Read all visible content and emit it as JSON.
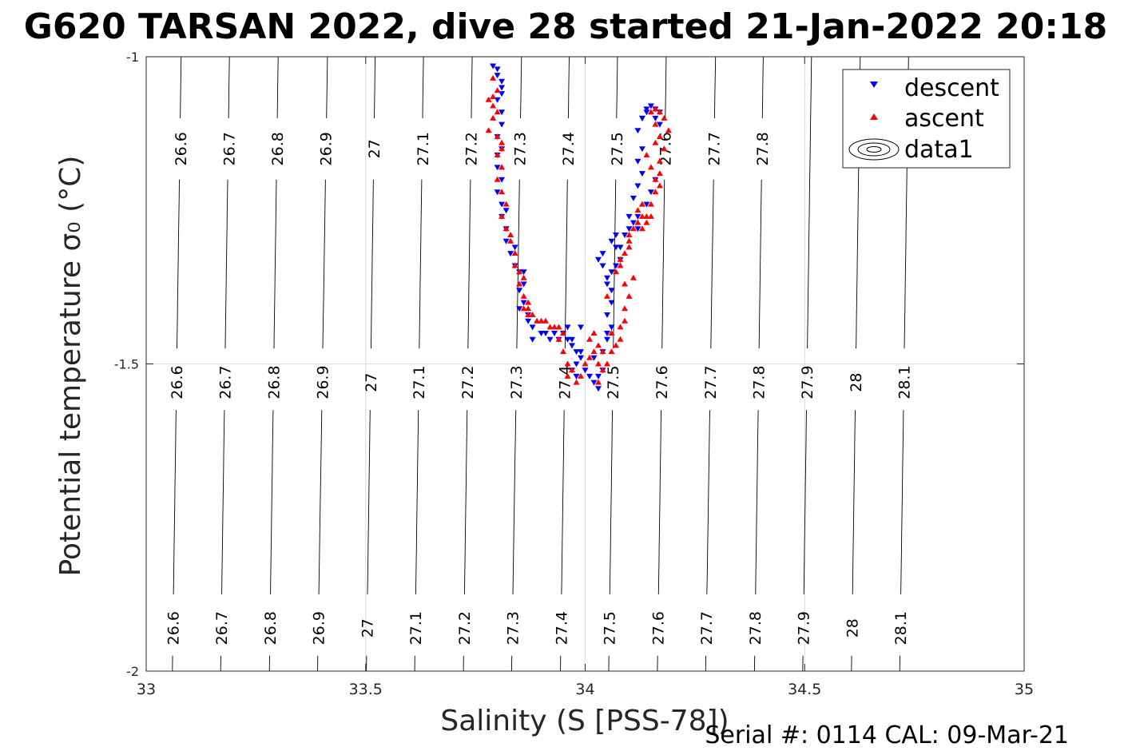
{
  "chart_data": {
    "type": "scatter",
    "title": "G620 TARSAN 2022, dive 28 started 21-Jan-2022 20:18",
    "xlabel": "Salinity (S [PSS-78])",
    "ylabel": "Potential temperature σ₀ (°C)",
    "footer": "Serial #: 0114  CAL: 09-Mar-21",
    "xlim": [
      33,
      35
    ],
    "ylim": [
      -2,
      -1
    ],
    "x_ticks": [
      33,
      33.5,
      34,
      34.5,
      35
    ],
    "x_tick_labels": [
      "33",
      "33.5",
      "34",
      "34.5",
      "35"
    ],
    "y_ticks": [
      -2,
      -1.5,
      -1
    ],
    "y_tick_labels": [
      "-2",
      "-1.5",
      "-1"
    ],
    "grid": true,
    "legend_position": "top-right",
    "legend": [
      {
        "label": "descent",
        "marker": "triangle-down",
        "color": "#0000ff"
      },
      {
        "label": "ascent",
        "marker": "triangle-up",
        "color": "#ff0000"
      },
      {
        "label": "data1",
        "marker": "contour",
        "color": "#000000"
      }
    ],
    "isopycnals": [
      {
        "label": "26.6",
        "label_s": [
          33.061,
          33.069,
          33.078
        ]
      },
      {
        "label": "26.7",
        "label_s": [
          33.171,
          33.179,
          33.188
        ]
      },
      {
        "label": "26.8",
        "label_s": [
          33.282,
          33.29,
          33.298
        ]
      },
      {
        "label": "26.9",
        "label_s": [
          33.392,
          33.401,
          33.409
        ]
      },
      {
        "label": "27",
        "label_s": [
          33.503,
          33.511,
          33.519
        ]
      },
      {
        "label": "27.1",
        "label_s": [
          33.613,
          33.621,
          33.63
        ]
      },
      {
        "label": "27.2",
        "label_s": [
          33.724,
          33.732,
          33.74
        ]
      },
      {
        "label": "27.3",
        "label_s": [
          33.834,
          33.843,
          33.851
        ]
      },
      {
        "label": "27.4",
        "label_s": [
          33.945,
          33.953,
          33.961
        ]
      },
      {
        "label": "27.5",
        "label_s": [
          34.055,
          34.063,
          34.072
        ]
      },
      {
        "label": "27.6",
        "label_s": [
          34.166,
          34.174,
          34.182
        ]
      },
      {
        "label": "27.7",
        "label_s": [
          34.276,
          34.285,
          34.293
        ]
      },
      {
        "label": "27.8",
        "label_s": [
          34.387,
          34.395,
          34.403
        ]
      },
      {
        "label": "27.9",
        "label_s": [
          34.497,
          34.505,
          null
        ]
      },
      {
        "label": "28",
        "label_s": [
          34.608,
          34.616,
          null
        ]
      },
      {
        "label": "28.1",
        "label_s": [
          34.718,
          34.726,
          null
        ]
      }
    ],
    "isopycnal_label_temps": [
      -1.93,
      -1.53,
      -1.15
    ],
    "series": [
      {
        "name": "descent",
        "color": "#0000ff",
        "marker": "triangle-down",
        "points": [
          [
            33.79,
            -1.015
          ],
          [
            33.8,
            -1.02
          ],
          [
            33.8,
            -1.03
          ],
          [
            33.81,
            -1.04
          ],
          [
            33.81,
            -1.05
          ],
          [
            33.8,
            -1.07
          ],
          [
            33.81,
            -1.09
          ],
          [
            33.81,
            -1.11
          ],
          [
            33.8,
            -1.13
          ],
          [
            33.81,
            -1.15
          ],
          [
            33.8,
            -1.18
          ],
          [
            33.81,
            -1.2
          ],
          [
            33.8,
            -1.22
          ],
          [
            33.81,
            -1.24
          ],
          [
            33.81,
            -1.26
          ],
          [
            33.82,
            -1.28
          ],
          [
            33.82,
            -1.3
          ],
          [
            33.83,
            -1.32
          ],
          [
            33.84,
            -1.34
          ],
          [
            33.85,
            -1.35
          ],
          [
            33.86,
            -1.35
          ],
          [
            33.86,
            -1.37
          ],
          [
            33.85,
            -1.38
          ],
          [
            33.86,
            -1.4
          ],
          [
            33.85,
            -1.41
          ],
          [
            33.87,
            -1.42
          ],
          [
            33.87,
            -1.43
          ],
          [
            33.88,
            -1.44
          ],
          [
            33.9,
            -1.45
          ],
          [
            33.91,
            -1.45
          ],
          [
            33.93,
            -1.45
          ],
          [
            33.95,
            -1.45
          ],
          [
            33.96,
            -1.44
          ],
          [
            33.96,
            -1.46
          ],
          [
            33.97,
            -1.47
          ],
          [
            33.98,
            -1.48
          ],
          [
            33.99,
            -1.49
          ],
          [
            33.98,
            -1.5
          ],
          [
            33.97,
            -1.51
          ],
          [
            33.98,
            -1.52
          ],
          [
            33.99,
            -1.44
          ],
          [
            33.99,
            -1.48
          ],
          [
            34.0,
            -1.51
          ],
          [
            34.01,
            -1.52
          ],
          [
            34.02,
            -1.53
          ],
          [
            34.03,
            -1.54
          ],
          [
            34.03,
            -1.52
          ],
          [
            34.04,
            -1.51
          ],
          [
            34.04,
            -1.48
          ],
          [
            34.05,
            -1.46
          ],
          [
            34.05,
            -1.45
          ],
          [
            34.06,
            -1.44
          ],
          [
            34.05,
            -1.42
          ],
          [
            34.06,
            -1.4
          ],
          [
            34.06,
            -1.38
          ],
          [
            34.05,
            -1.37
          ],
          [
            34.06,
            -1.35
          ],
          [
            34.07,
            -1.34
          ],
          [
            34.08,
            -1.33
          ],
          [
            34.08,
            -1.31
          ],
          [
            34.09,
            -1.29
          ],
          [
            34.1,
            -1.28
          ],
          [
            34.11,
            -1.27
          ],
          [
            34.12,
            -1.28
          ],
          [
            34.12,
            -1.26
          ],
          [
            34.11,
            -1.23
          ],
          [
            34.12,
            -1.21
          ],
          [
            34.13,
            -1.19
          ],
          [
            34.12,
            -1.17
          ],
          [
            34.13,
            -1.15
          ],
          [
            34.12,
            -1.12
          ],
          [
            34.13,
            -1.1
          ],
          [
            34.14,
            -1.085
          ],
          [
            34.15,
            -1.08
          ],
          [
            34.16,
            -1.085
          ],
          [
            34.17,
            -1.09
          ],
          [
            34.16,
            -1.1
          ],
          [
            34.17,
            -1.11
          ],
          [
            34.03,
            -1.33
          ],
          [
            34.04,
            -1.32
          ],
          [
            34.04,
            -1.34
          ],
          [
            34.05,
            -1.36
          ],
          [
            34.06,
            -1.3
          ],
          [
            34.07,
            -1.29
          ],
          [
            34.13,
            -1.1
          ],
          [
            34.14,
            -1.09
          ],
          [
            33.8,
            -1.16
          ],
          [
            33.82,
            -1.25
          ],
          [
            33.84,
            -1.31
          ],
          [
            33.88,
            -1.46
          ],
          [
            33.92,
            -1.46
          ],
          [
            33.94,
            -1.46
          ],
          [
            33.97,
            -1.46
          ],
          [
            34.02,
            -1.49
          ],
          [
            34.07,
            -1.31
          ],
          [
            34.1,
            -1.26
          ],
          [
            34.14,
            -1.24
          ],
          [
            34.15,
            -1.22
          ],
          [
            34.16,
            -1.2
          ],
          [
            33.81,
            -1.06
          ]
        ]
      },
      {
        "name": "ascent",
        "color": "#ff0000",
        "marker": "triangle-up",
        "points": [
          [
            33.78,
            -1.07
          ],
          [
            33.79,
            -1.08
          ],
          [
            33.8,
            -1.09
          ],
          [
            33.79,
            -1.1
          ],
          [
            33.78,
            -1.12
          ],
          [
            33.8,
            -1.13
          ],
          [
            33.81,
            -1.15
          ],
          [
            33.8,
            -1.16
          ],
          [
            33.81,
            -1.18
          ],
          [
            33.8,
            -1.2
          ],
          [
            33.81,
            -1.22
          ],
          [
            33.82,
            -1.24
          ],
          [
            33.81,
            -1.26
          ],
          [
            33.82,
            -1.28
          ],
          [
            33.83,
            -1.3
          ],
          [
            33.84,
            -1.32
          ],
          [
            33.84,
            -1.34
          ],
          [
            33.85,
            -1.35
          ],
          [
            33.86,
            -1.36
          ],
          [
            33.85,
            -1.37
          ],
          [
            33.86,
            -1.39
          ],
          [
            33.87,
            -1.4
          ],
          [
            33.86,
            -1.41
          ],
          [
            33.87,
            -1.42
          ],
          [
            33.88,
            -1.42
          ],
          [
            33.89,
            -1.43
          ],
          [
            33.9,
            -1.43
          ],
          [
            33.91,
            -1.43
          ],
          [
            33.92,
            -1.44
          ],
          [
            33.94,
            -1.44
          ],
          [
            33.95,
            -1.45
          ],
          [
            33.94,
            -1.46
          ],
          [
            33.95,
            -1.48
          ],
          [
            33.96,
            -1.5
          ],
          [
            33.97,
            -1.51
          ],
          [
            33.96,
            -1.52
          ],
          [
            33.98,
            -1.53
          ],
          [
            33.99,
            -1.52
          ],
          [
            34.0,
            -1.5
          ],
          [
            34.01,
            -1.49
          ],
          [
            34.02,
            -1.48
          ],
          [
            34.01,
            -1.46
          ],
          [
            34.02,
            -1.45
          ],
          [
            34.03,
            -1.47
          ],
          [
            34.04,
            -1.48
          ],
          [
            34.04,
            -1.51
          ],
          [
            34.03,
            -1.53
          ],
          [
            34.05,
            -1.5
          ],
          [
            34.06,
            -1.48
          ],
          [
            34.07,
            -1.47
          ],
          [
            34.08,
            -1.46
          ],
          [
            34.08,
            -1.44
          ],
          [
            34.09,
            -1.43
          ],
          [
            34.09,
            -1.41
          ],
          [
            34.1,
            -1.39
          ],
          [
            34.09,
            -1.37
          ],
          [
            34.08,
            -1.34
          ],
          [
            34.09,
            -1.32
          ],
          [
            34.1,
            -1.31
          ],
          [
            34.1,
            -1.3
          ],
          [
            34.11,
            -1.28
          ],
          [
            34.12,
            -1.27
          ],
          [
            34.12,
            -1.25
          ],
          [
            34.13,
            -1.24
          ],
          [
            34.13,
            -1.26
          ],
          [
            34.14,
            -1.27
          ],
          [
            34.15,
            -1.26
          ],
          [
            34.15,
            -1.24
          ],
          [
            34.16,
            -1.22
          ],
          [
            34.17,
            -1.19
          ],
          [
            34.17,
            -1.17
          ],
          [
            34.18,
            -1.15
          ],
          [
            34.17,
            -1.13
          ],
          [
            34.16,
            -1.11
          ],
          [
            34.15,
            -1.09
          ],
          [
            34.16,
            -1.085
          ],
          [
            34.17,
            -1.09
          ],
          [
            34.18,
            -1.1
          ],
          [
            34.19,
            -1.12
          ],
          [
            34.16,
            -1.14
          ],
          [
            34.14,
            -1.16
          ],
          [
            34.15,
            -1.18
          ],
          [
            34.16,
            -1.2
          ],
          [
            34.17,
            -1.21
          ],
          [
            34.14,
            -1.26
          ],
          [
            34.13,
            -1.28
          ],
          [
            34.1,
            -1.29
          ],
          [
            34.08,
            -1.33
          ],
          [
            34.07,
            -1.35
          ],
          [
            34.05,
            -1.39
          ],
          [
            33.79,
            -1.035
          ],
          [
            33.8,
            -1.055
          ],
          [
            33.79,
            -1.065
          ],
          [
            33.81,
            -1.14
          ],
          [
            33.83,
            -1.29
          ],
          [
            33.87,
            -1.41
          ],
          [
            33.93,
            -1.44
          ],
          [
            34.03,
            -1.5
          ],
          [
            34.06,
            -1.45
          ],
          [
            34.11,
            -1.36
          ]
        ]
      }
    ]
  }
}
